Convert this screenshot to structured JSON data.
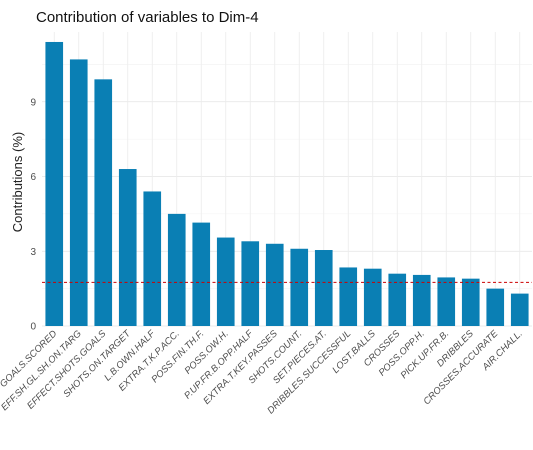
{
  "chart_data": {
    "type": "bar",
    "title": "Contribution of variables to Dim-4",
    "xlabel": "",
    "ylabel": "Contributions (%)",
    "ylim": [
      0,
      11.8
    ],
    "yticks": [
      0,
      3,
      6,
      9
    ],
    "grid": true,
    "reference_line": 1.75,
    "bar_color": "#0a7fb4",
    "reference_color": "#cc0000",
    "categories": [
      "GOALS.SCORED",
      "EFF.SH.GL.SH.ON.TARG",
      "EFFECT.SHOTS.GOALS",
      "SHOTS.ON.TARGET",
      "L.B.OWN.HALF",
      "EXTRA.T.K.P.ACC.",
      "POSS.FIN.TH.F.",
      "POSS.OW.H.",
      "P.UP.FR.B.OPP.HALF",
      "EXTRA.T.KEY.PASSES",
      "SHOTS.COUNT.",
      "SET.PIECES.AT.",
      "DRIBBLES.SUCCESSFUL",
      "LOST.BALLS",
      "CROSSES",
      "POSS.OPP.H.",
      "PICK.UP.FR.B.",
      "DRIBBLES",
      "CROSSES.ACCURATE",
      "AIR.CHALL."
    ],
    "values": [
      11.4,
      10.7,
      9.9,
      6.3,
      5.4,
      4.5,
      4.15,
      3.55,
      3.4,
      3.3,
      3.1,
      3.05,
      2.35,
      2.3,
      2.1,
      2.05,
      1.95,
      1.9,
      1.5,
      1.3
    ]
  }
}
